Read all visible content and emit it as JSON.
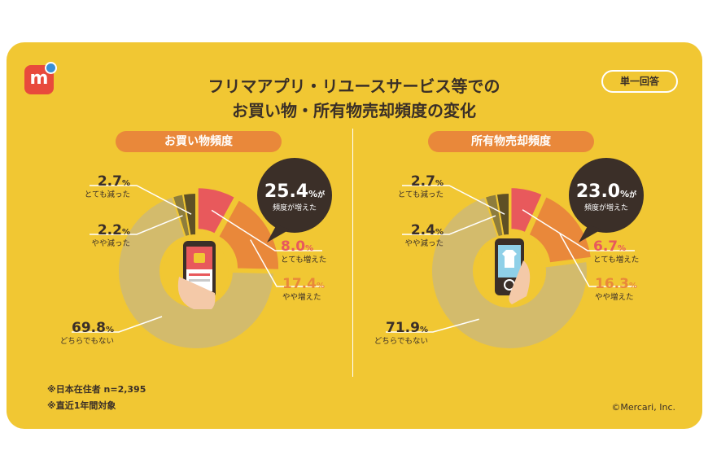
{
  "title_line1": "フリマアプリ・リユースサービス等での",
  "title_line2": "お買い物・所有物売却頻度の変化",
  "answer_badge": "単一回答",
  "notes": [
    "※日本在住者 n=2,395",
    "※直近1年間対象"
  ],
  "copyright": "©Mercari, Inc.",
  "colors": {
    "background": "#f1c733",
    "much_increased": "#e8595c",
    "somewhat_increased": "#e9883a",
    "unchanged": "#d3bb6c",
    "somewhat_decreased": "#8e7d3c",
    "much_decreased": "#5e5025",
    "callout": "#3b2f28"
  },
  "chart_data": [
    {
      "type": "pie",
      "title": "お買い物頻度",
      "callout_value": "25.4",
      "callout_unit": "%",
      "callout_suffix": "が",
      "callout_label": "頻度が増えた",
      "slices": [
        {
          "label": "とても増えた",
          "value": 8.0,
          "display": "8.0",
          "color": "#e8595c"
        },
        {
          "label": "やや増えた",
          "value": 17.4,
          "display": "17.4",
          "color": "#e9883a"
        },
        {
          "label": "どちらでもない",
          "value": 69.8,
          "display": "69.8",
          "color": "#d3bb6c"
        },
        {
          "label": "やや減った",
          "value": 2.2,
          "display": "2.2",
          "color": "#8e7d3c"
        },
        {
          "label": "とても減った",
          "value": 2.7,
          "display": "2.7",
          "color": "#5e5025"
        }
      ]
    },
    {
      "type": "pie",
      "title": "所有物売却頻度",
      "callout_value": "23.0",
      "callout_unit": "%",
      "callout_suffix": "が",
      "callout_label": "頻度が増えた",
      "slices": [
        {
          "label": "とても増えた",
          "value": 6.7,
          "display": "6.7",
          "color": "#e8595c"
        },
        {
          "label": "やや増えた",
          "value": 16.3,
          "display": "16.3",
          "color": "#e9883a"
        },
        {
          "label": "どちらでもない",
          "value": 71.9,
          "display": "71.9",
          "color": "#d3bb6c"
        },
        {
          "label": "やや減った",
          "value": 2.4,
          "display": "2.4",
          "color": "#8e7d3c"
        },
        {
          "label": "とても減った",
          "value": 2.7,
          "display": "2.7",
          "color": "#5e5025"
        }
      ]
    }
  ]
}
